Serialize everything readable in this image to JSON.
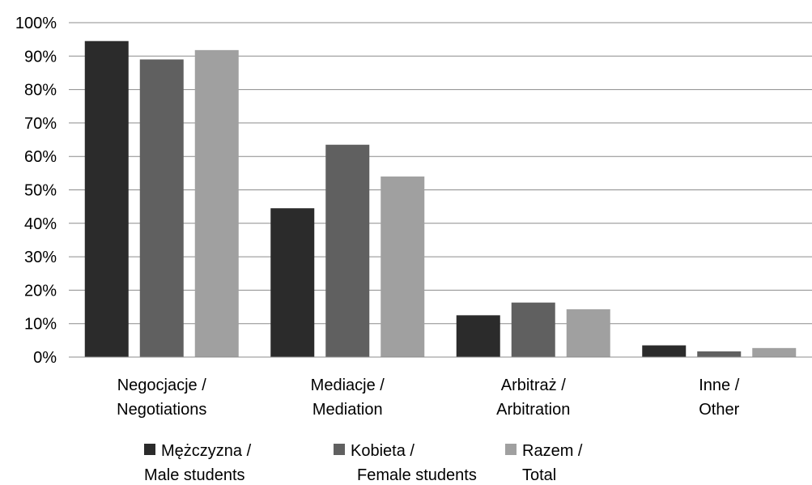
{
  "chart_data": {
    "type": "bar",
    "title": "",
    "xlabel": "",
    "ylabel": "",
    "ylim": [
      0,
      1
    ],
    "y_ticks": [
      "0%",
      "10%",
      "20%",
      "30%",
      "40%",
      "50%",
      "60%",
      "70%",
      "80%",
      "90%",
      "100%"
    ],
    "grid": true,
    "legend_position": "bottom",
    "categories": [
      [
        "Negocjacje /",
        "Negotiations"
      ],
      [
        "Mediacje /",
        "Mediation"
      ],
      [
        "Arbitraż /",
        "Arbitration"
      ],
      [
        "Inne /",
        "Other"
      ]
    ],
    "series": [
      {
        "name": [
          "Mężczyzna /",
          "Male students"
        ],
        "color": "#2b2b2b",
        "values": [
          0.945,
          0.445,
          0.125,
          0.035
        ]
      },
      {
        "name": [
          "Kobieta /",
          "Female students"
        ],
        "color": "#606060",
        "values": [
          0.89,
          0.635,
          0.163,
          0.017
        ]
      },
      {
        "name": [
          "Razem /",
          "Total"
        ],
        "color": "#a0a0a0",
        "values": [
          0.918,
          0.54,
          0.143,
          0.027
        ]
      }
    ]
  }
}
